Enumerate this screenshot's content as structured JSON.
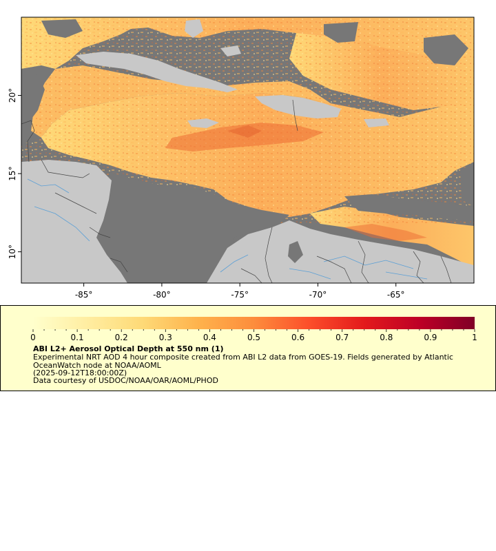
{
  "map": {
    "x_axis": {
      "ticks": [
        {
          "lon": -85,
          "label": "-85°"
        },
        {
          "lon": -80,
          "label": "-80°"
        },
        {
          "lon": -75,
          "label": "-75°"
        },
        {
          "lon": -70,
          "label": "-70°"
        },
        {
          "lon": -65,
          "label": "-65°"
        }
      ]
    },
    "y_axis": {
      "ticks": [
        {
          "lat": 20,
          "label": "20°"
        },
        {
          "lat": 15,
          "label": "15°"
        },
        {
          "lat": 10,
          "label": "10°"
        }
      ]
    },
    "lon_range": [
      -89,
      -60
    ],
    "lat_range": [
      8,
      25
    ],
    "colors": {
      "ocean_nodata": "#777777",
      "land": "#c8c8c8",
      "aod_low": "#fedd8b",
      "aod_mid": "#fba04d",
      "aod_high": "#d7301f",
      "rivers": "#5aa0d8",
      "borders": "#333333"
    }
  },
  "colorbar": {
    "min": 0,
    "max": 1,
    "labels": [
      "0",
      "0.1",
      "0.2",
      "0.3",
      "0.4",
      "0.5",
      "0.6",
      "0.7",
      "0.8",
      "0.9",
      "1"
    ],
    "colors": [
      "#ffffcc",
      "#ffeda0",
      "#fed976",
      "#feb24c",
      "#fd8d3c",
      "#fc4e2a",
      "#e31a1c",
      "#bd0026",
      "#800026"
    ]
  },
  "legend": {
    "title": "ABI L2+ Aerosol Optical Depth at 550 nm (1)",
    "description": "Experimental NRT AOD 4 hour composite created from ABI L2 data from GOES-19. Fields generated by Atlantic OceanWatch node at NOAA/AOML",
    "time": "(2025-09-12T18:00:00Z)",
    "credit": "Data courtesy of USDOC/NOAA/OAR/AOML/PHOD"
  }
}
